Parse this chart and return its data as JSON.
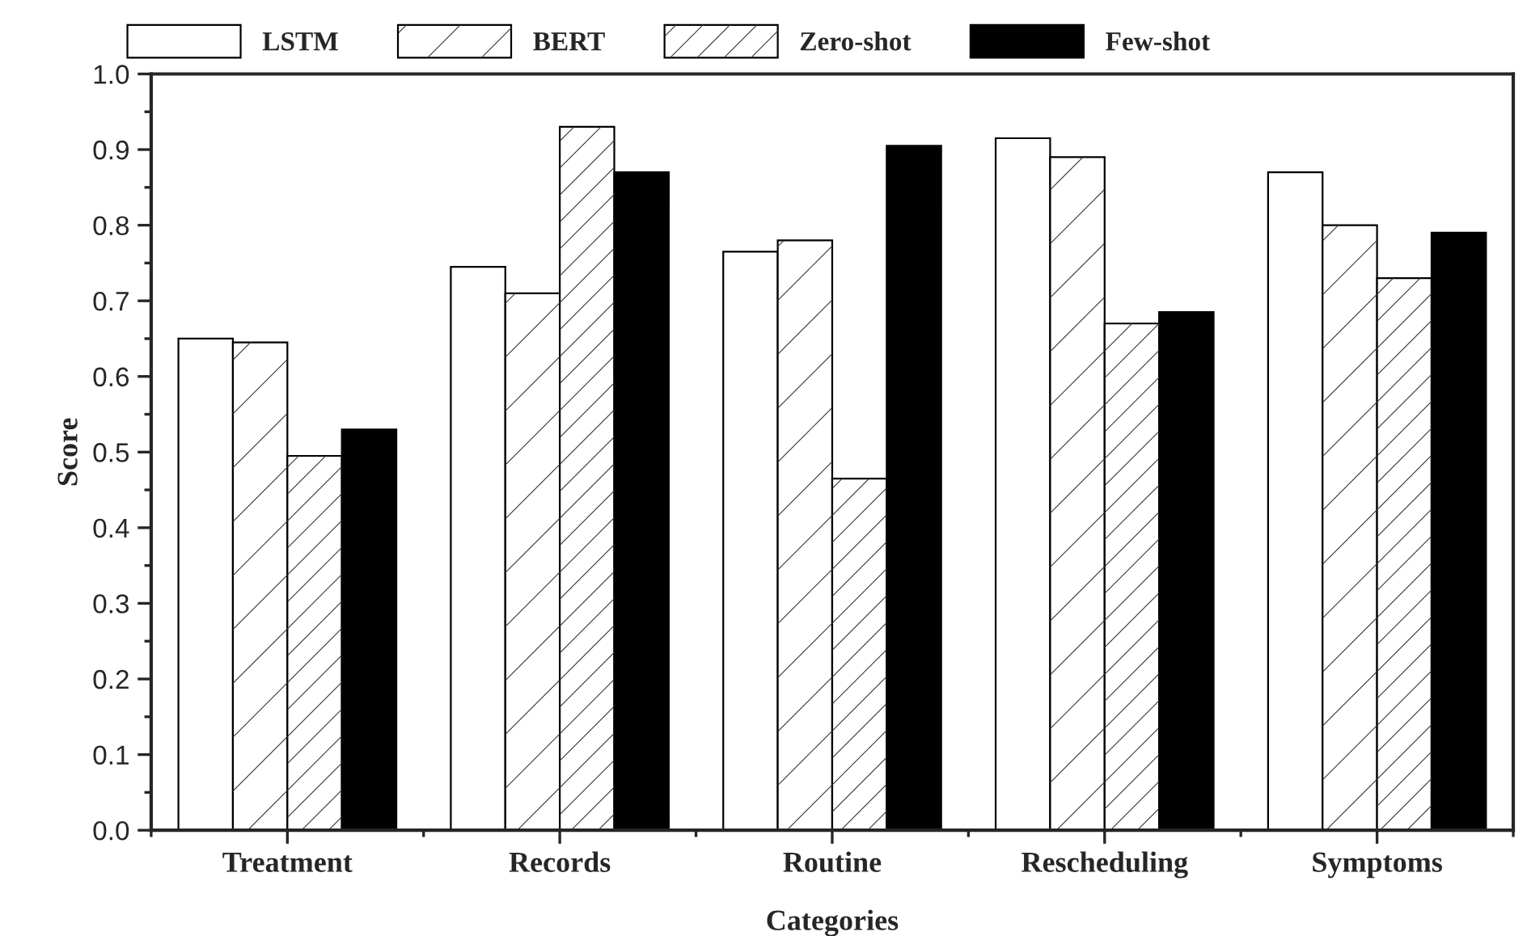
{
  "chart_data": {
    "type": "bar",
    "xlabel": "Categories",
    "ylabel": "Score",
    "categories": [
      "Treatment",
      "Records",
      "Routine",
      "Rescheduling",
      "Symptoms"
    ],
    "series": [
      {
        "name": "LSTM",
        "color": "#ffffff",
        "values": [
          0.65,
          0.745,
          0.765,
          0.915,
          0.87
        ]
      },
      {
        "name": "BERT",
        "color": "#ffffff",
        "values": [
          0.645,
          0.71,
          0.78,
          0.89,
          0.8
        ]
      },
      {
        "name": "Zero-shot",
        "color": "#ffffff",
        "values": [
          0.495,
          0.93,
          0.465,
          0.67,
          0.73
        ]
      },
      {
        "name": "Few-shot",
        "color": "#000000",
        "values": [
          0.53,
          0.87,
          0.905,
          0.685,
          0.79
        ]
      }
    ],
    "ylim": [
      0,
      1.0
    ],
    "yticks": [
      {
        "value": 0,
        "label": "0.0"
      },
      0.1,
      0.2,
      0.3,
      0.4,
      0.5,
      0.6,
      0.7,
      0.8,
      0.9,
      {
        "value": 1,
        "label": "1.0"
      }
    ],
    "grid": false,
    "legend": "top"
  }
}
